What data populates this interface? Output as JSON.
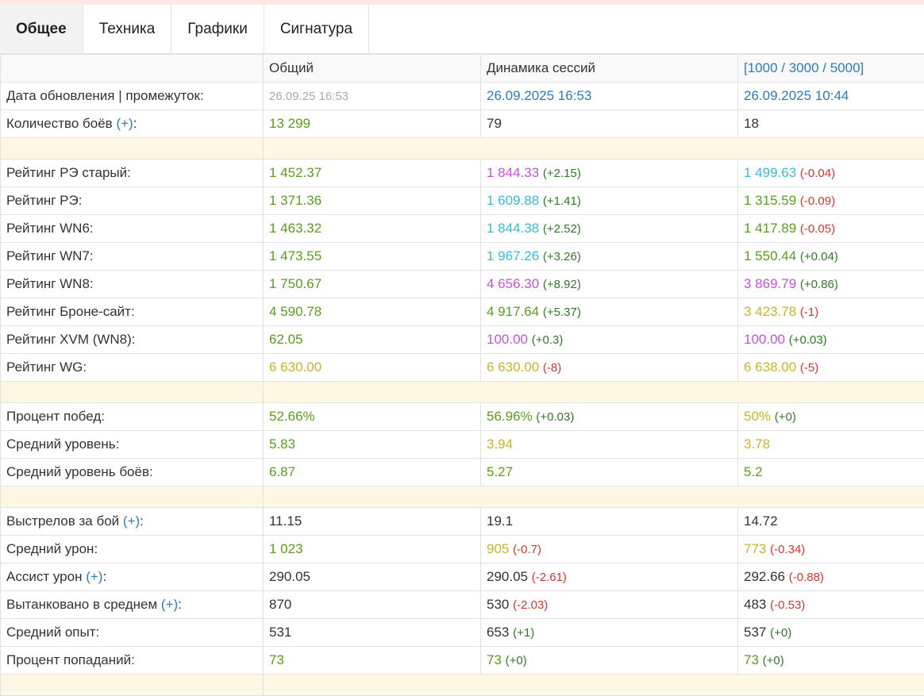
{
  "tabs": [
    "Общее",
    "Техника",
    "Графики",
    "Сигнатура"
  ],
  "active_tab": 0,
  "header": [
    "",
    "Общий",
    "Динамика сессий",
    "[1000 / 3000 / 5000]"
  ],
  "header_colors": [
    "dark",
    "dark",
    "dark",
    "blue"
  ],
  "plus_label": "(+)",
  "colors": {
    "green": "#5a9e1c",
    "delta_green": "#2f7a25",
    "red": "#d8342c",
    "purple": "#c553d9",
    "cyan": "#35bcd6",
    "yellow": "#c9b524",
    "blue": "#2b7bbd"
  },
  "rows": [
    {
      "label": "Дата обновления | промежуток:",
      "cells": [
        {
          "v": "26.09.25 16:53",
          "c": "gray"
        },
        {
          "v": "26.09.2025 16:53",
          "c": "blue"
        },
        {
          "v": "26.09.2025 10:44",
          "c": "blue"
        }
      ]
    },
    {
      "label": "Количество боёв",
      "plus": true,
      "cells": [
        {
          "v": "13 299",
          "c": "green"
        },
        {
          "v": "79",
          "c": "dark"
        },
        {
          "v": "18",
          "c": "dark"
        }
      ]
    },
    {
      "sep": true
    },
    {
      "label": "Рейтинг РЭ старый:",
      "cells": [
        {
          "v": "1 452.37",
          "c": "green"
        },
        {
          "v": "1 844.33",
          "c": "purple",
          "d": "(+2.15)",
          "dc": "dgreen"
        },
        {
          "v": "1 499.63",
          "c": "cyan",
          "d": "(-0.04)",
          "dc": "red"
        }
      ]
    },
    {
      "label": "Рейтинг РЭ:",
      "cells": [
        {
          "v": "1 371.36",
          "c": "green"
        },
        {
          "v": "1 609.88",
          "c": "cyan",
          "d": "(+1.41)",
          "dc": "dgreen"
        },
        {
          "v": "1 315.59",
          "c": "green",
          "d": "(-0.09)",
          "dc": "red"
        }
      ]
    },
    {
      "label": "Рейтинг WN6:",
      "cells": [
        {
          "v": "1 463.32",
          "c": "green"
        },
        {
          "v": "1 844.38",
          "c": "cyan",
          "d": "(+2.52)",
          "dc": "dgreen"
        },
        {
          "v": "1 417.89",
          "c": "green",
          "d": "(-0.05)",
          "dc": "red"
        }
      ]
    },
    {
      "label": "Рейтинг WN7:",
      "cells": [
        {
          "v": "1 473.55",
          "c": "green"
        },
        {
          "v": "1 967.26",
          "c": "cyan",
          "d": "(+3.26)",
          "dc": "dgreen"
        },
        {
          "v": "1 550.44",
          "c": "green",
          "d": "(+0.04)",
          "dc": "dgreen"
        }
      ]
    },
    {
      "label": "Рейтинг WN8:",
      "cells": [
        {
          "v": "1 750.67",
          "c": "green"
        },
        {
          "v": "4 656.30",
          "c": "purple",
          "d": "(+8.92)",
          "dc": "dgreen"
        },
        {
          "v": "3 869.79",
          "c": "purple",
          "d": "(+0.86)",
          "dc": "dgreen"
        }
      ]
    },
    {
      "label": "Рейтинг Броне-сайт:",
      "cells": [
        {
          "v": "4 590.78",
          "c": "green"
        },
        {
          "v": "4 917.64",
          "c": "green",
          "d": "(+5.37)",
          "dc": "dgreen"
        },
        {
          "v": "3 423.78",
          "c": "yellow",
          "d": "(-1)",
          "dc": "red"
        }
      ]
    },
    {
      "label": "Рейтинг XVM (WN8):",
      "cells": [
        {
          "v": "62.05",
          "c": "green"
        },
        {
          "v": "100.00",
          "c": "purple",
          "d": "(+0.3)",
          "dc": "dgreen"
        },
        {
          "v": "100.00",
          "c": "purple",
          "d": "(+0.03)",
          "dc": "dgreen"
        }
      ]
    },
    {
      "label": "Рейтинг WG:",
      "cells": [
        {
          "v": "6 630.00",
          "c": "yellow"
        },
        {
          "v": "6 630.00",
          "c": "yellow",
          "d": "(-8)",
          "dc": "red"
        },
        {
          "v": "6 638.00",
          "c": "yellow",
          "d": "(-5)",
          "dc": "red"
        }
      ]
    },
    {
      "sep": true
    },
    {
      "label": "Процент побед:",
      "cells": [
        {
          "v": "52.66%",
          "c": "green"
        },
        {
          "v": "56.96%",
          "c": "green",
          "d": "(+0.03)",
          "dc": "dgreen"
        },
        {
          "v": "50%",
          "c": "yellow",
          "d": "(+0)",
          "dc": "dgreen"
        }
      ]
    },
    {
      "label": "Средний уровень:",
      "cells": [
        {
          "v": "5.83",
          "c": "green"
        },
        {
          "v": "3.94",
          "c": "yellow"
        },
        {
          "v": "3.78",
          "c": "yellow"
        }
      ]
    },
    {
      "label": "Средний уровень боёв:",
      "cells": [
        {
          "v": "6.87",
          "c": "green"
        },
        {
          "v": "5.27",
          "c": "green"
        },
        {
          "v": "5.2",
          "c": "green"
        }
      ]
    },
    {
      "sep": true
    },
    {
      "label": "Выстрелов за бой",
      "plus": true,
      "cells": [
        {
          "v": "11.15",
          "c": "dark"
        },
        {
          "v": "19.1",
          "c": "dark"
        },
        {
          "v": "14.72",
          "c": "dark"
        }
      ]
    },
    {
      "label": "Средний урон:",
      "cells": [
        {
          "v": "1 023",
          "c": "green"
        },
        {
          "v": "905",
          "c": "yellow",
          "d": "(-0.7)",
          "dc": "red"
        },
        {
          "v": "773",
          "c": "yellow",
          "d": "(-0.34)",
          "dc": "red"
        }
      ]
    },
    {
      "label": "Ассист урон",
      "plus": true,
      "cells": [
        {
          "v": "290.05",
          "c": "dark"
        },
        {
          "v": "290.05",
          "c": "dark",
          "d": "(-2.61)",
          "dc": "red"
        },
        {
          "v": "292.66",
          "c": "dark",
          "d": "(-0.88)",
          "dc": "red"
        }
      ]
    },
    {
      "label": "Вытанковано в среднем",
      "plus": true,
      "cells": [
        {
          "v": "870",
          "c": "dark"
        },
        {
          "v": "530",
          "c": "dark",
          "d": "(-2.03)",
          "dc": "red"
        },
        {
          "v": "483",
          "c": "dark",
          "d": "(-0.53)",
          "dc": "red"
        }
      ]
    },
    {
      "label": "Средний опыт:",
      "cells": [
        {
          "v": "531",
          "c": "dark"
        },
        {
          "v": "653",
          "c": "dark",
          "d": "(+1)",
          "dc": "dgreen"
        },
        {
          "v": "537",
          "c": "dark",
          "d": "(+0)",
          "dc": "dgreen"
        }
      ]
    },
    {
      "label": "Процент попаданий:",
      "cells": [
        {
          "v": "73",
          "c": "green"
        },
        {
          "v": "73",
          "c": "green",
          "d": "(+0)",
          "dc": "dgreen"
        },
        {
          "v": "73",
          "c": "green",
          "d": "(+0)",
          "dc": "dgreen"
        }
      ]
    },
    {
      "sep": true
    }
  ]
}
